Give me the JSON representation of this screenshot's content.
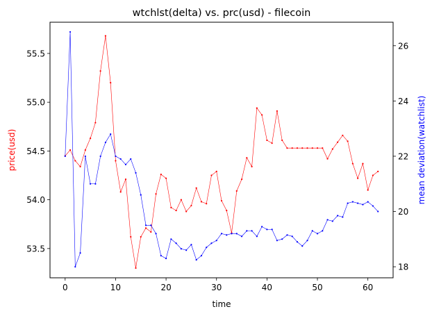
{
  "chart_data": {
    "type": "line",
    "title": "wtchlst(delta) vs. prc(usd) - filecoin",
    "xlabel": "time",
    "xlim": [
      -3,
      65
    ],
    "x_ticks": [
      0,
      10,
      20,
      30,
      40,
      50,
      60
    ],
    "left_axis": {
      "label": "price(usd)",
      "color": "#ff0000",
      "ylim": [
        53.2,
        55.82
      ],
      "ticks": [
        "53.5",
        "54.0",
        "54.5",
        "55.0",
        "55.5"
      ]
    },
    "right_axis": {
      "label": "mean deviation(watchlist)",
      "color": "#0000ff",
      "ylim": [
        17.6,
        26.85
      ],
      "ticks": [
        "18",
        "20",
        "22",
        "24",
        "26"
      ]
    },
    "series": [
      {
        "axis": "left",
        "color": "#ff0000",
        "x": [
          0,
          1,
          2,
          3,
          4,
          5,
          6,
          7,
          8,
          9,
          10,
          11,
          12,
          13,
          14,
          15,
          16,
          17,
          18,
          19,
          20,
          21,
          22,
          23,
          24,
          25,
          26,
          27,
          28,
          29,
          30,
          31,
          32,
          33,
          34,
          35,
          36,
          37,
          38,
          39,
          40,
          41,
          42,
          43,
          44,
          45,
          46,
          47,
          48,
          49,
          50,
          51,
          52,
          53,
          54,
          55,
          56,
          57,
          58,
          59,
          60,
          61,
          62
        ],
        "values": [
          54.45,
          54.51,
          54.4,
          54.34,
          54.51,
          54.63,
          54.79,
          55.32,
          55.68,
          55.2,
          54.4,
          54.08,
          54.21,
          53.62,
          53.3,
          53.62,
          53.71,
          53.67,
          54.06,
          54.26,
          54.22,
          53.92,
          53.89,
          54.0,
          53.88,
          53.94,
          54.12,
          53.98,
          53.96,
          54.25,
          54.29,
          53.99,
          53.89,
          53.66,
          54.09,
          54.21,
          54.43,
          54.34,
          54.94,
          54.87,
          54.61,
          54.58,
          54.91,
          54.61,
          54.53,
          54.53,
          54.53,
          54.53,
          54.53,
          54.53,
          54.53,
          54.53,
          54.42,
          54.52,
          54.59,
          54.66,
          54.6,
          54.37,
          54.22,
          54.37,
          54.1,
          54.25,
          54.29
        ]
      },
      {
        "axis": "right",
        "color": "#0000ff",
        "x": [
          0,
          1,
          2,
          3,
          4,
          5,
          6,
          7,
          8,
          9,
          10,
          11,
          12,
          13,
          14,
          15,
          16,
          17,
          18,
          19,
          20,
          21,
          22,
          23,
          24,
          25,
          26,
          27,
          28,
          29,
          30,
          31,
          32,
          33,
          34,
          35,
          36,
          37,
          38,
          39,
          40,
          41,
          42,
          43,
          44,
          45,
          46,
          47,
          48,
          49,
          50,
          51,
          52,
          53,
          54,
          55,
          56,
          57,
          58,
          59,
          60,
          61,
          62
        ],
        "values": [
          22.0,
          26.5,
          18.0,
          18.5,
          22.0,
          21.0,
          21.0,
          22.0,
          22.5,
          22.8,
          22.0,
          21.9,
          21.7,
          21.9,
          21.4,
          20.6,
          19.5,
          19.5,
          19.2,
          18.4,
          18.3,
          19.0,
          18.85,
          18.65,
          18.6,
          18.8,
          18.25,
          18.4,
          18.7,
          18.85,
          18.95,
          19.2,
          19.15,
          19.2,
          19.2,
          19.1,
          19.3,
          19.3,
          19.1,
          19.45,
          19.35,
          19.35,
          18.95,
          19.0,
          19.15,
          19.1,
          18.9,
          18.75,
          18.95,
          19.3,
          19.2,
          19.3,
          19.7,
          19.65,
          19.85,
          19.8,
          20.3,
          20.35,
          20.3,
          20.25,
          20.35,
          20.2,
          20.0
        ]
      }
    ]
  }
}
